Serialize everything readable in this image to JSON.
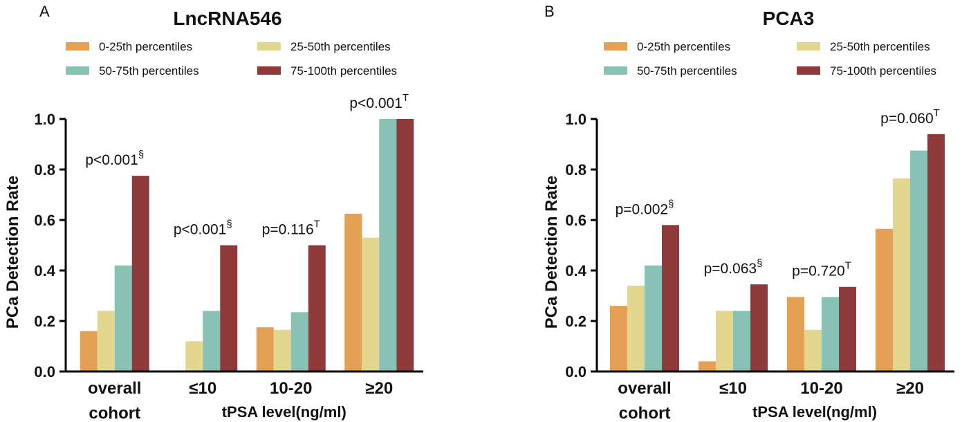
{
  "series_colors": {
    "0-25th percentiles": "#E4A054",
    "25-50th percentiles": "#E3D68E",
    "50-75th percentiles": "#89C1B5",
    "75-100th percentiles": "#8E3A3A"
  },
  "chart_data": [
    {
      "type": "bar",
      "panel": "A",
      "title": "LncRNA546",
      "ylabel": "PCa Detection Rate",
      "xlabel": "tPSA level(ng/ml)",
      "ylim": [
        0,
        1.0
      ],
      "yticks": [
        "0.0",
        "0.2",
        "0.4",
        "0.6",
        "0.8",
        "1.0"
      ],
      "categories": [
        [
          "overall",
          "cohort"
        ],
        [
          "≤10"
        ],
        [
          "10-20"
        ],
        [
          "≥20"
        ]
      ],
      "series": [
        {
          "name": "0-25th percentiles",
          "values": [
            0.16,
            0.0,
            0.175,
            0.625
          ]
        },
        {
          "name": "25-50th percentiles",
          "values": [
            0.24,
            0.12,
            0.165,
            0.53
          ]
        },
        {
          "name": "50-75th percentiles",
          "values": [
            0.42,
            0.24,
            0.235,
            1.0
          ]
        },
        {
          "name": "75-100th percentiles",
          "values": [
            0.775,
            0.5,
            0.5,
            1.0
          ]
        }
      ],
      "annotations": [
        {
          "text": "p<0.001",
          "sup": "§"
        },
        {
          "text": "p<0.001",
          "sup": "§"
        },
        {
          "text": "p=0.116",
          "sup": "T"
        },
        {
          "text": "p<0.001",
          "sup": "T"
        }
      ]
    },
    {
      "type": "bar",
      "panel": "B",
      "title": "PCA3",
      "ylabel": "PCa Detection Rate",
      "xlabel": "tPSA level(ng/ml)",
      "ylim": [
        0,
        1.0
      ],
      "yticks": [
        "0.0",
        "0.2",
        "0.4",
        "0.6",
        "0.8",
        "1.0"
      ],
      "categories": [
        [
          "overall",
          "cohort"
        ],
        [
          "≤10"
        ],
        [
          "10-20"
        ],
        [
          "≥20"
        ]
      ],
      "series": [
        {
          "name": "0-25th percentiles",
          "values": [
            0.26,
            0.04,
            0.295,
            0.565
          ]
        },
        {
          "name": "25-50th percentiles",
          "values": [
            0.34,
            0.24,
            0.165,
            0.765
          ]
        },
        {
          "name": "50-75th percentiles",
          "values": [
            0.42,
            0.24,
            0.295,
            0.875
          ]
        },
        {
          "name": "75-100th percentiles",
          "values": [
            0.58,
            0.345,
            0.335,
            0.94
          ]
        }
      ],
      "annotations": [
        {
          "text": "p=0.002",
          "sup": "§"
        },
        {
          "text": "p=0.063",
          "sup": "§"
        },
        {
          "text": "p=0.720",
          "sup": "T"
        },
        {
          "text": "p=0.060",
          "sup": "T"
        }
      ]
    }
  ]
}
